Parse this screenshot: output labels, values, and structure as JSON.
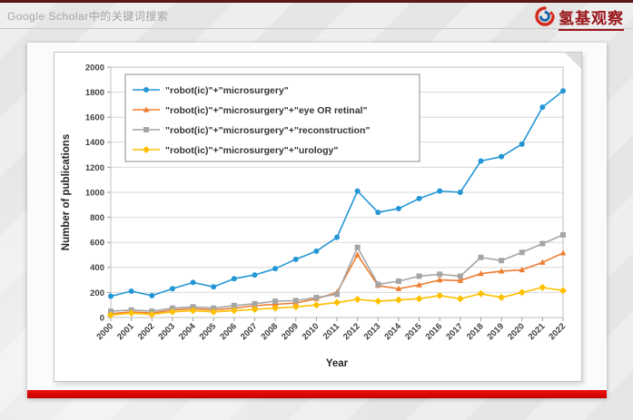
{
  "header": {
    "title": "Google Scholar中的关键词搜索",
    "logo_text": "氢基观察"
  },
  "colors": {
    "footer_red": "#d40000",
    "brand_red": "#991419",
    "brand_blue": "#1b63a8"
  },
  "chart_data": {
    "type": "line",
    "title": "",
    "xlabel": "Year",
    "ylabel": "Number of publications",
    "ylim": [
      0,
      2000
    ],
    "ytick_step": 200,
    "grid": true,
    "legend_position": "top-left-inside",
    "x": [
      "2000",
      "2001",
      "2002",
      "2003",
      "2004",
      "2005",
      "2006",
      "2007",
      "2008",
      "2009",
      "2010",
      "2011",
      "2012",
      "2013",
      "2014",
      "2015",
      "2016",
      "2017",
      "2018",
      "2019",
      "2020",
      "2021",
      "2022"
    ],
    "series": [
      {
        "name": "\"robot(ic)\"+\"microsurgery\"",
        "color": "#2396D5",
        "marker": "circle",
        "values": [
          170,
          210,
          175,
          230,
          280,
          245,
          310,
          340,
          390,
          465,
          530,
          640,
          1010,
          840,
          870,
          950,
          1010,
          1000,
          1250,
          1285,
          1385,
          1680,
          1810
        ]
      },
      {
        "name": "\"robot(ic)\"+\"microsurgery\"+\"eye OR retinal\"",
        "color": "#ED7D31",
        "marker": "triangle",
        "values": [
          30,
          45,
          35,
          60,
          70,
          60,
          75,
          95,
          105,
          115,
          150,
          200,
          500,
          255,
          230,
          260,
          300,
          295,
          350,
          370,
          380,
          440,
          515
        ]
      },
      {
        "name": "\"robot(ic)\"+\"microsurgery\"+\"reconstruction\"",
        "color": "#A5A5A5",
        "marker": "square",
        "values": [
          50,
          60,
          50,
          75,
          85,
          75,
          95,
          110,
          130,
          135,
          160,
          185,
          560,
          265,
          290,
          330,
          345,
          330,
          480,
          455,
          520,
          590,
          660
        ]
      },
      {
        "name": "\"robot(ic)\"+\"microsurgery\"+\"urology\"",
        "color": "#FFC000",
        "marker": "diamond",
        "values": [
          20,
          35,
          25,
          45,
          55,
          45,
          55,
          65,
          75,
          85,
          100,
          120,
          145,
          130,
          140,
          150,
          175,
          150,
          190,
          160,
          200,
          240,
          215
        ]
      }
    ]
  }
}
